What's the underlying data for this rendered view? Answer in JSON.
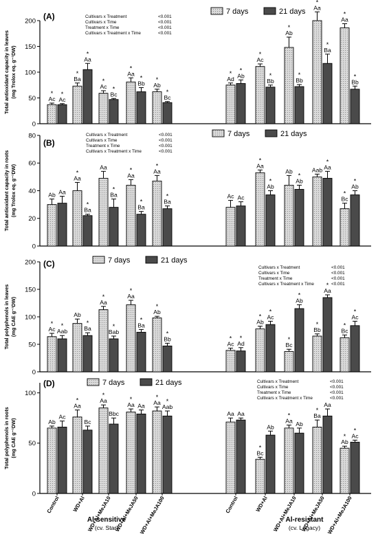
{
  "chart_data": [
    {
      "type": "bar",
      "panel_label": "(A)",
      "ylabel_lines": [
        "Total antioxidant capacity in leaves",
        "(mg Trolox eq. g⁻¹DW)"
      ],
      "ylim": [
        0,
        200
      ],
      "yticks": [
        0,
        50,
        100,
        150,
        200
      ],
      "legend": {
        "placement": "top",
        "entries": [
          "7 days",
          "21 days"
        ]
      },
      "stats": [
        [
          "Cultivars x Treatment",
          "<0.001"
        ],
        [
          "Cultivars x Time",
          "<0.001"
        ],
        [
          "Treatment x Time",
          "<0.001"
        ],
        [
          "Cultivars x Treatment x Time",
          "<0.001"
        ]
      ],
      "stats_placement": "left",
      "series": [
        {
          "name": "7 days",
          "values": [
            37,
            73,
            59,
            81,
            62,
            75,
            111,
            148,
            200,
            186
          ],
          "errors": [
            3,
            6,
            5,
            8,
            5,
            4,
            5,
            20,
            17,
            8
          ],
          "labels": [
            "Ac",
            "Ba",
            "Ac",
            "Aa",
            "Ab",
            "Ad",
            "Ac",
            "Ab",
            "Aa",
            "Aa"
          ],
          "stars": [
            true,
            true,
            true,
            true,
            true,
            true,
            true,
            true,
            true,
            true
          ]
        },
        {
          "name": "21 days",
          "values": [
            37,
            105,
            47,
            62,
            41,
            78,
            71,
            72,
            117,
            67
          ],
          "errors": [
            2,
            12,
            2,
            8,
            2,
            7,
            4,
            4,
            18,
            6
          ],
          "labels": [
            "Ac",
            "Aa",
            "Bc",
            "Bb",
            "Bc",
            "Ab",
            "Bb",
            "Bb",
            "Ba",
            "Bb"
          ],
          "stars": [
            true,
            true,
            true,
            true,
            true,
            true,
            true,
            true,
            true,
            true
          ]
        }
      ]
    },
    {
      "type": "bar",
      "panel_label": "(B)",
      "ylabel_lines": [
        "Total antioxidant capacity in roots",
        "(mg Trolox eq. g⁻¹DW)"
      ],
      "ylim": [
        0,
        80
      ],
      "yticks": [
        0,
        20,
        40,
        60,
        80
      ],
      "legend": {
        "placement": "top-right",
        "entries": [
          "7 days",
          "21 days"
        ]
      },
      "stats": [
        [
          "Cultivars x Treatment",
          "<0.001"
        ],
        [
          "Cultivars x Time",
          "<0.001"
        ],
        [
          "Treatment x Time",
          "<0.001"
        ],
        [
          "Cultivars x Treatment x Time",
          "<0.001"
        ]
      ],
      "stats_placement": "top-center",
      "series": [
        {
          "name": "7 days",
          "values": [
            30,
            40,
            49,
            44,
            47,
            28,
            53,
            44,
            50,
            27
          ],
          "errors": [
            4,
            6,
            5,
            4,
            4,
            5,
            2,
            7,
            2,
            4
          ],
          "labels": [
            "Ab",
            "Aa",
            "Aa",
            "Aa",
            "Aa",
            "Ac",
            "Aa",
            "Ab",
            "Aab",
            "Bc"
          ],
          "stars": [
            false,
            true,
            false,
            true,
            true,
            false,
            true,
            false,
            false,
            true
          ]
        },
        {
          "name": "21 days",
          "values": [
            31,
            22,
            28,
            23,
            27,
            29,
            37,
            41,
            49,
            37
          ],
          "errors": [
            5,
            1,
            6,
            2,
            2,
            3,
            3,
            3,
            5,
            3
          ],
          "labels": [
            "Aa",
            "Ba",
            "Ba",
            "Ba",
            "Ba",
            "Ac",
            "Ab",
            "Ab",
            "Aa",
            "Ab"
          ],
          "stars": [
            false,
            true,
            true,
            true,
            true,
            false,
            true,
            true,
            true,
            true
          ]
        }
      ]
    },
    {
      "type": "bar",
      "panel_label": "(C)",
      "ylabel_lines": [
        "Total polyphenols in leaves",
        "(mg CAE g⁻¹DW)"
      ],
      "ylim": [
        0,
        200
      ],
      "yticks": [
        0,
        50,
        100,
        150,
        200
      ],
      "legend": {
        "placement": "top-left",
        "entries": [
          "7 days",
          "21 days"
        ]
      },
      "stats": [
        [
          "Cultivars x Treatment",
          "<0.001"
        ],
        [
          "Cultivars x Time",
          "<0.001"
        ],
        [
          "Treatment x Time",
          "<0.001"
        ],
        [
          "Cultivars x Treatment x Time",
          "<0.001"
        ]
      ],
      "stats_placement": "top-right",
      "series": [
        {
          "name": "7 days",
          "values": [
            64,
            88,
            113,
            122,
            98,
            39,
            78,
            37,
            65,
            62
          ],
          "errors": [
            6,
            8,
            6,
            8,
            3,
            4,
            5,
            4,
            4,
            5
          ],
          "labels": [
            "Ac",
            "Ab",
            "Aa",
            "Aa",
            "Ab",
            "Ac",
            "Ab",
            "Bc",
            "Bb",
            "Bc"
          ],
          "stars": [
            true,
            false,
            true,
            true,
            true,
            true,
            true,
            true,
            true,
            true
          ]
        },
        {
          "name": "21 days",
          "values": [
            60,
            66,
            60,
            72,
            47,
            38,
            86,
            115,
            135,
            84
          ],
          "errors": [
            6,
            5,
            5,
            5,
            5,
            6,
            6,
            7,
            5,
            8
          ],
          "labels": [
            "Aab",
            "Ba",
            "Bab",
            "Ba",
            "Bb",
            "Ad",
            "Ac",
            "Ab",
            "Aa",
            "Ac"
          ],
          "stars": [
            true,
            true,
            true,
            true,
            true,
            true,
            true,
            true,
            true,
            true
          ]
        }
      ]
    },
    {
      "type": "bar",
      "panel_label": "(D)",
      "ylabel_lines": [
        "Total polyphenols in roots",
        "(mg CAE g⁻¹DW)"
      ],
      "ylim": [
        0,
        110
      ],
      "yticks": [
        0,
        50,
        100
      ],
      "legend": {
        "placement": "top-left",
        "entries": [
          "7 days",
          "21 days"
        ]
      },
      "stats": [
        [
          "Cultivars x Treatment",
          "<0.001"
        ],
        [
          "Cultivars x Time",
          "<0.001"
        ],
        [
          "Treatment x Time",
          "<0.001"
        ],
        [
          "Cultivars x Treatment x Time",
          "<0.001"
        ]
      ],
      "stats_placement": "top-right",
      "series": [
        {
          "name": "7 days",
          "values": [
            65,
            76,
            85,
            81,
            82,
            71,
            34,
            65,
            66,
            45
          ],
          "errors": [
            2,
            7,
            3,
            3,
            4,
            4,
            2,
            3,
            7,
            2
          ],
          "labels": [
            "Ab",
            "Aa",
            "Aa",
            "Aa",
            "Aa",
            "Aa",
            "Bc",
            "Aa",
            "Ba",
            "Ab"
          ],
          "stars": [
            false,
            true,
            true,
            true,
            true,
            false,
            true,
            true,
            true,
            true
          ]
        },
        {
          "name": "21 days",
          "values": [
            66,
            63,
            69,
            79,
            77,
            73,
            58,
            60,
            77,
            51
          ],
          "errors": [
            6,
            4,
            6,
            4,
            5,
            2,
            4,
            5,
            7,
            2
          ],
          "labels": [
            "Ac",
            "Bc",
            "Bbc",
            "Aa",
            "Aab",
            "Aa",
            "Ab",
            "Ab",
            "Aa",
            "Ac"
          ],
          "stars": [
            false,
            false,
            false,
            false,
            true,
            false,
            false,
            false,
            false,
            true
          ]
        }
      ]
    }
  ],
  "categories": [
    "Control",
    "WD+Al",
    "WD+Al+MeJA10",
    "WD+Al+MeJA50",
    "WD+Al+MeJA100",
    "Control",
    "WD+Al",
    "WD+Al+MeJA10",
    "WD+Al+MeJA50",
    "WD+Al+MeJA100"
  ],
  "groups": [
    {
      "name": "Al-sensitive",
      "cultivar": "(cv. Star)"
    },
    {
      "name": "Al-resistant",
      "cultivar": "(cv. Legacy)"
    }
  ],
  "colors": {
    "series_7": "#d6d6d6",
    "series_21": "#4a4a4a",
    "axis": "#000000"
  }
}
